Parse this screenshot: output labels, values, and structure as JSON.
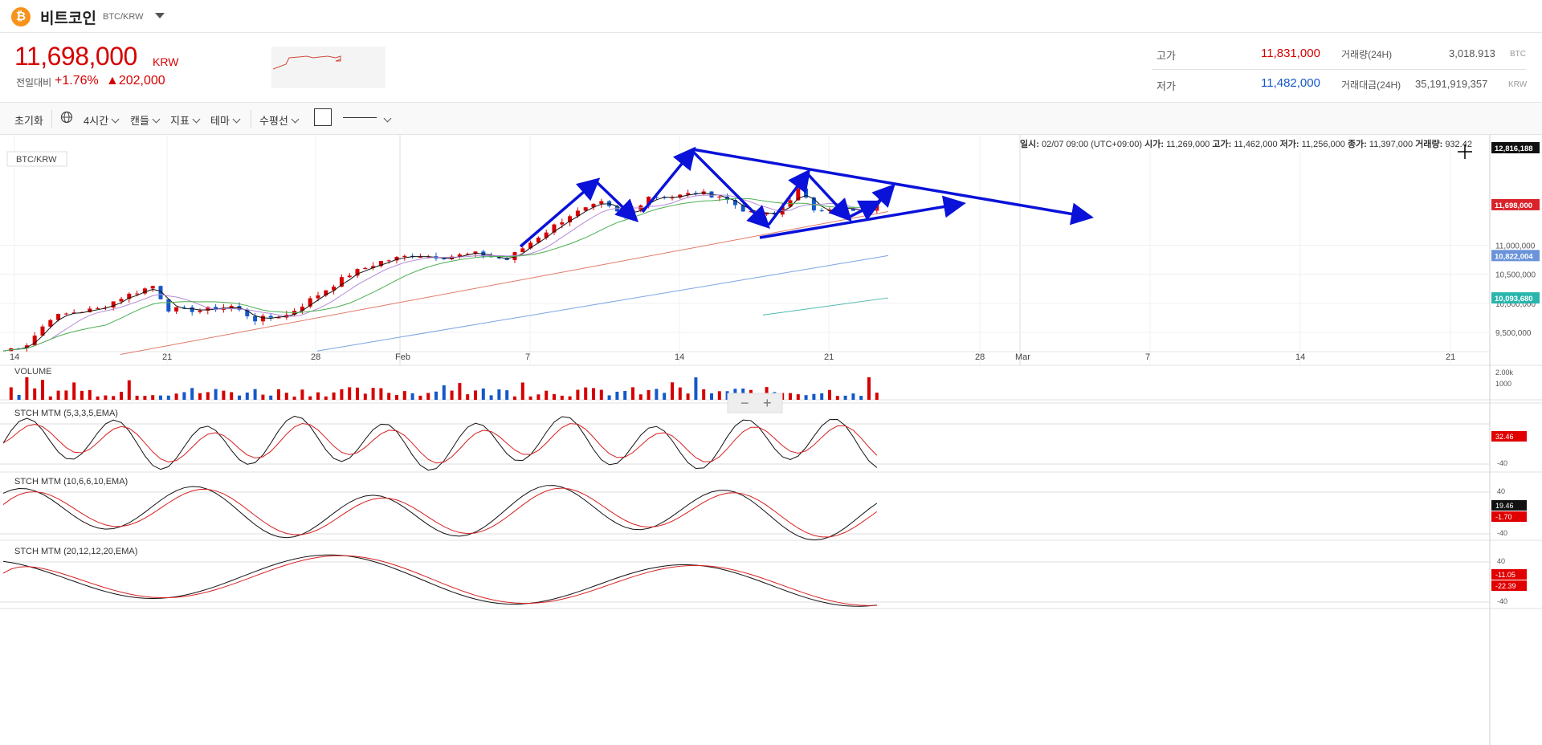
{
  "header": {
    "coin_icon": "₿",
    "coin_name": "비트코인",
    "pair": "BTC/KRW"
  },
  "ticker": {
    "price": "11,698,000",
    "unit": "KRW",
    "change_label": "전일대비",
    "change_pct": "+1.76%",
    "change_amt": "▲202,000",
    "high_label": "고가",
    "high": "11,831,000",
    "low_label": "저가",
    "low": "11,482,000",
    "vol_label": "거래량(24H)",
    "vol": "3,018.913",
    "vol_unit": "BTC",
    "amt_label": "거래대금(24H)",
    "amt": "35,191,919,357",
    "amt_unit": "KRW"
  },
  "toolbar": {
    "reset": "초기화",
    "interval": "4시간",
    "candle": "캔들",
    "indicator": "지표",
    "theme": "테마",
    "hline": "수평선"
  },
  "ohlc": {
    "date_label": "일시:",
    "date": "02/07 09:00 (UTC+09:00)",
    "open_label": "시가:",
    "open": "11,269,000",
    "high_label": "고가:",
    "high": "11,462,000",
    "low_label": "저가:",
    "low": "11,256,000",
    "close_label": "종가:",
    "close": "11,397,000",
    "vol_label": "거래량:",
    "vol": "932.42"
  },
  "colors": {
    "up": "#d60000",
    "down": "#1458c9",
    "annotation": "#0a12d9"
  },
  "chart_data": {
    "type": "candlestick",
    "title": "BTC/KRW",
    "interval": "4시간",
    "x_ticks": [
      "14",
      "21",
      "28",
      "Feb",
      "7",
      "14",
      "21",
      "28",
      "Mar",
      "7",
      "14",
      "21"
    ],
    "y_ticks": [
      "11,000,000",
      "10,500,000",
      "10,000,000",
      "9,500,000"
    ],
    "ylim": [
      9100000,
      12650000
    ],
    "price_tags": [
      {
        "value": 12816188,
        "label": "12,816,188",
        "color": "#111111"
      },
      {
        "value": 11698000,
        "label": "11,698,000",
        "color": "#d9232a"
      },
      {
        "value": 10822004,
        "label": "10,822,004",
        "color": "#6a93d8"
      },
      {
        "value": 10093680,
        "label": "10,093,680",
        "color": "#2ab5ad"
      }
    ],
    "price_waypoints": [
      [
        0,
        9180000
      ],
      [
        3,
        9300000
      ],
      [
        6,
        9750000
      ],
      [
        9,
        9850000
      ],
      [
        12,
        9900000
      ],
      [
        15,
        10100000
      ],
      [
        19,
        10300000
      ],
      [
        21,
        9900000
      ],
      [
        25,
        9880000
      ],
      [
        29,
        9950000
      ],
      [
        32,
        9720000
      ],
      [
        36,
        9800000
      ],
      [
        40,
        10150000
      ],
      [
        44,
        10500000
      ],
      [
        48,
        10720000
      ],
      [
        52,
        10830000
      ],
      [
        56,
        10800000
      ],
      [
        60,
        10850000
      ],
      [
        64,
        10750000
      ],
      [
        68,
        11150000
      ],
      [
        72,
        11520000
      ],
      [
        76,
        11720000
      ],
      [
        79,
        11480000
      ],
      [
        82,
        11850000
      ],
      [
        85,
        11830000
      ],
      [
        88,
        11900000
      ],
      [
        91,
        11850000
      ],
      [
        95,
        11540000
      ],
      [
        98,
        11520000
      ],
      [
        101,
        11950000
      ],
      [
        103,
        11620000
      ],
      [
        106,
        11650000
      ],
      [
        109,
        11540000
      ],
      [
        111,
        11698000
      ]
    ],
    "sma_levels": [
      {
        "name": "MA",
        "color": "#e07a6a",
        "start": 9120000,
        "end": 11580000
      },
      {
        "name": "MA",
        "color": "#7aa5e0",
        "start": 9180000,
        "end": 10822004
      },
      {
        "name": "MA",
        "color": "#4fb8b0",
        "start": 9800000,
        "end": 10093680
      }
    ],
    "volume": {
      "label": "VOLUME",
      "ticks": [
        "2.00k",
        "1000"
      ]
    },
    "indicators": [
      {
        "label": "STCH MTM (5,3,3,5,EMA)",
        "ticks": [
          "-40"
        ],
        "tags": [
          "32.46"
        ]
      },
      {
        "label": "STCH MTM (10,6,6,10,EMA)",
        "ticks": [
          "40",
          "-40"
        ],
        "tags": [
          "19.46",
          "-1.70"
        ]
      },
      {
        "label": "STCH MTM (20,12,12,20,EMA)",
        "ticks": [
          "40",
          "-40"
        ],
        "tags": [
          "-11.05",
          "-22.39"
        ]
      }
    ],
    "annotations": "triangle trendlines and arrows"
  },
  "zoom": {
    "minus": "−",
    "plus": "+"
  }
}
